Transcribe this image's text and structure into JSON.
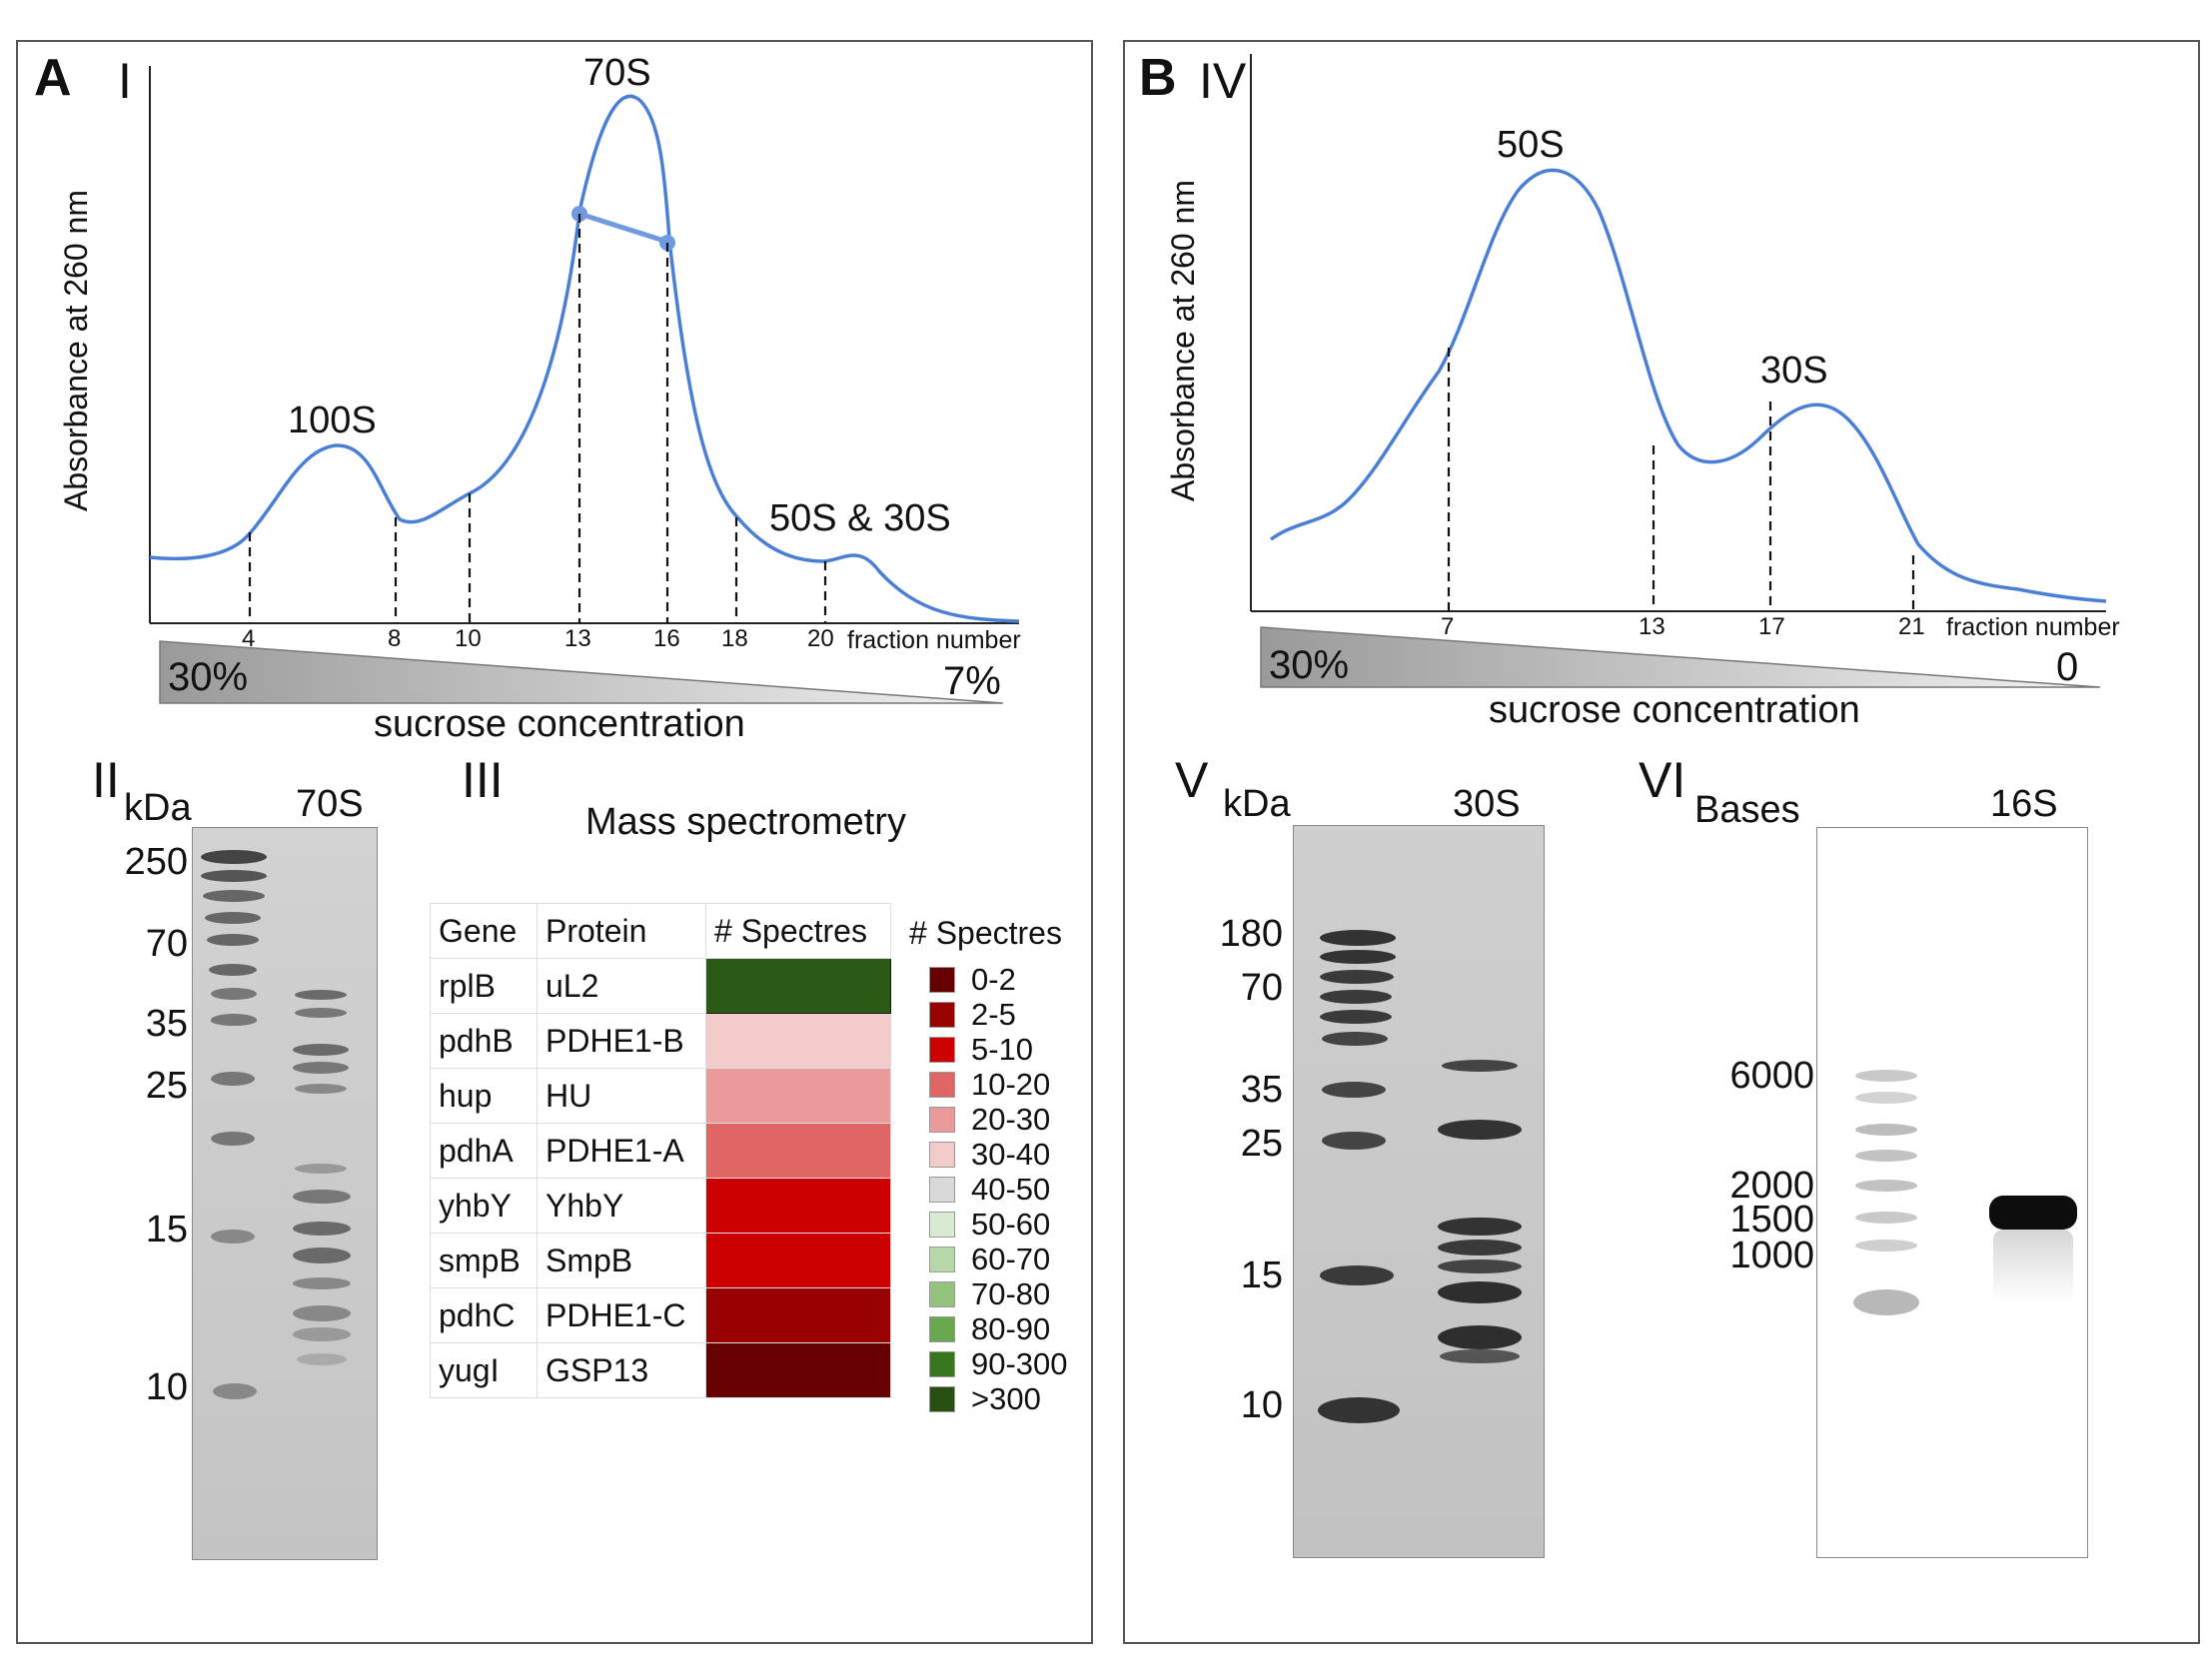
{
  "panelA": {
    "label": "A",
    "plotI": {
      "roman": "I",
      "ylabel": "Absorbance at 260 nm",
      "peaks": [
        "70S",
        "100S",
        "50S & 30S"
      ],
      "fractions": [
        "4",
        "8",
        "10",
        "13",
        "16",
        "18",
        "20"
      ],
      "fraction_label": "fraction number",
      "sucrose_label": "sucrose concentration",
      "pct_high": "30%",
      "pct_low": "7%",
      "curve_color": "#4a7fd4"
    },
    "gelII": {
      "roman": "II",
      "kda": "kDa",
      "lane": "70S",
      "markers": [
        "250",
        "70",
        "35",
        "25",
        "15",
        "10"
      ]
    },
    "tableIII": {
      "roman": "III",
      "title": "Mass spectrometry",
      "headers": [
        "Gene",
        "Protein",
        "# Spectres"
      ],
      "rows": [
        {
          "gene": "rplB",
          "protein": "uL2",
          "color": "#2b5a17"
        },
        {
          "gene": "pdhB",
          "protein": "PDHE1-B",
          "color": "#f4cbcb"
        },
        {
          "gene": "hup",
          "protein": "HU",
          "color": "#ea9a9a"
        },
        {
          "gene": "pdhA",
          "protein": "PDHE1-A",
          "color": "#e06666"
        },
        {
          "gene": "yhbY",
          "protein": "YhbY",
          "color": "#cc0000"
        },
        {
          "gene": "smpB",
          "protein": "SmpB",
          "color": "#cc0000"
        },
        {
          "gene": "pdhC",
          "protein": "PDHE1-C",
          "color": "#990000"
        },
        {
          "gene": "yugI",
          "protein": "GSP13",
          "color": "#660000"
        }
      ],
      "legend_title": "# Spectres",
      "legend": [
        {
          "label": "0-2",
          "color": "#660000"
        },
        {
          "label": "2-5",
          "color": "#990000"
        },
        {
          "label": "5-10",
          "color": "#cc0000"
        },
        {
          "label": "10-20",
          "color": "#e06666"
        },
        {
          "label": "20-30",
          "color": "#ea9a9a"
        },
        {
          "label": "30-40",
          "color": "#f4cbcb"
        },
        {
          "label": "40-50",
          "color": "#d9d9d9"
        },
        {
          "label": "50-60",
          "color": "#d9ead3"
        },
        {
          "label": "60-70",
          "color": "#b6d7a8"
        },
        {
          "label": "70-80",
          "color": "#93c47d"
        },
        {
          "label": "80-90",
          "color": "#6aa84f"
        },
        {
          "label": "90-300",
          "color": "#38761d"
        },
        {
          "label": ">300",
          "color": "#274e13"
        }
      ]
    }
  },
  "panelB": {
    "label": "B",
    "plotIV": {
      "roman": "IV",
      "ylabel": "Absorbance at 260 nm",
      "peaks": [
        "50S",
        "30S"
      ],
      "fractions": [
        "7",
        "13",
        "17",
        "21"
      ],
      "fraction_label": "fraction number",
      "sucrose_label": "sucrose concentration",
      "pct_high": "30%",
      "pct_low": "0"
    },
    "gelV": {
      "roman": "V",
      "kda": "kDa",
      "lane": "30S",
      "markers": [
        "180",
        "70",
        "35",
        "25",
        "15",
        "10"
      ]
    },
    "gelVI": {
      "roman": "VI",
      "bases": "Bases",
      "lane": "16S",
      "markers": [
        "6000",
        "2000",
        "1500",
        "1000"
      ]
    }
  }
}
